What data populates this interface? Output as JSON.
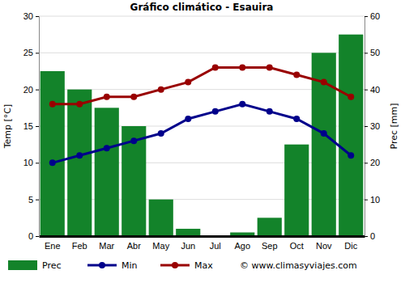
{
  "chart_data": {
    "type": "bar",
    "title": "Gráfico climático - Esauira",
    "categories": [
      "Ene",
      "Feb",
      "Mar",
      "Abr",
      "May",
      "Jun",
      "Jul",
      "Ago",
      "Sep",
      "Oct",
      "Nov",
      "Dic"
    ],
    "series": [
      {
        "name": "Prec",
        "type": "bar",
        "axis": "y2",
        "color": "#13832a",
        "values": [
          45,
          40,
          35,
          30,
          10,
          2,
          0,
          1,
          5,
          25,
          50,
          55
        ]
      },
      {
        "name": "Min",
        "type": "line",
        "marker": "circle",
        "color": "#00008b",
        "values": [
          10,
          11,
          12,
          13,
          14,
          16,
          17,
          18,
          17,
          16,
          14,
          11
        ]
      },
      {
        "name": "Max",
        "type": "line",
        "marker": "circle",
        "color": "#990000",
        "values": [
          18,
          18,
          19,
          19,
          20,
          21,
          23,
          23,
          23,
          22,
          21,
          19
        ]
      }
    ],
    "y_label": "Temp [°C]",
    "y2_label": "Prec [mm]",
    "ylim": [
      0,
      30
    ],
    "yticks": [
      0,
      5,
      10,
      15,
      20,
      25,
      30
    ],
    "y2lim": [
      0,
      60
    ],
    "y2ticks": [
      0,
      10,
      20,
      30,
      40,
      50,
      60
    ],
    "grid": true,
    "legend": "bottom",
    "annotations": [
      "© www.climasyviajes.com"
    ]
  }
}
